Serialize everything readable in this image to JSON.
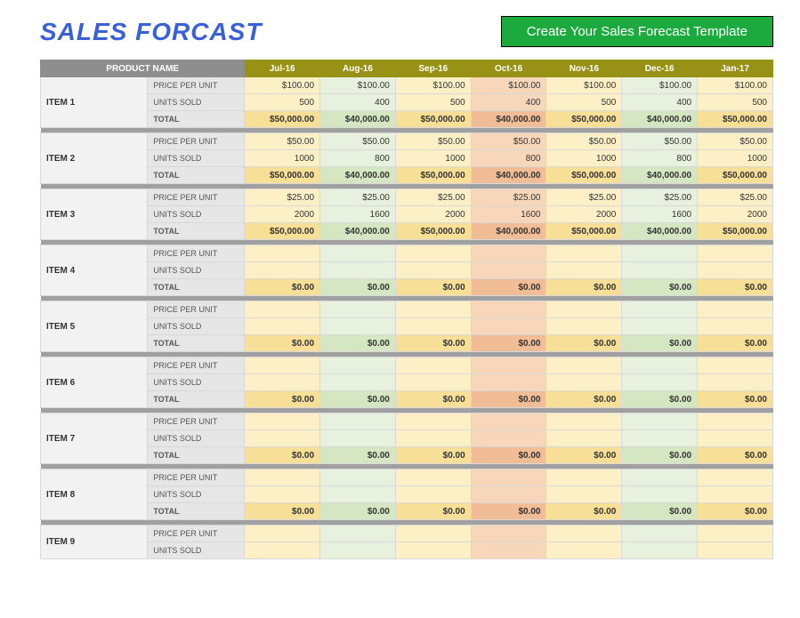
{
  "title": "SALES FORCAST",
  "banner": "Create Your Sales Forecast Template",
  "header": {
    "product_name": "PRODUCT NAME"
  },
  "months": [
    "Jul-16",
    "Aug-16",
    "Sep-16",
    "Oct-16",
    "Nov-16",
    "Dec-16",
    "Jan-17"
  ],
  "row_labels": {
    "ppu": "PRICE PER UNIT",
    "units": "UNITS SOLD",
    "total": "TOTAL"
  },
  "colors": {
    "title": "#3960d6",
    "banner_bg": "#1caa3e",
    "header_bg": "#8e8e8e",
    "month_header_bg": "#979116",
    "separator": "#a0a0a0",
    "item_col_bg": "#f2f2f2",
    "attr_col_bg": "#e6e6e6",
    "month_shades": {
      "Jul-16": {
        "light": "#fdf0c6",
        "dark": "#f7df97"
      },
      "Aug-16": {
        "light": "#e8f1de",
        "dark": "#d5e6c3"
      },
      "Sep-16": {
        "light": "#fdf0c6",
        "dark": "#f7df97"
      },
      "Oct-16": {
        "light": "#f7d6ba",
        "dark": "#f0bd96"
      },
      "Nov-16": {
        "light": "#fdf0c6",
        "dark": "#f7df97"
      },
      "Dec-16": {
        "light": "#e8f1de",
        "dark": "#d5e6c3"
      },
      "Jan-17": {
        "light": "#fdf0c6",
        "dark": "#f7df97"
      }
    }
  },
  "items": [
    {
      "name": "ITEM 1",
      "ppu": [
        "$100.00",
        "$100.00",
        "$100.00",
        "$100.00",
        "$100.00",
        "$100.00",
        "$100.00"
      ],
      "units": [
        "500",
        "400",
        "500",
        "400",
        "500",
        "400",
        "500"
      ],
      "total": [
        "$50,000.00",
        "$40,000.00",
        "$50,000.00",
        "$40,000.00",
        "$50,000.00",
        "$40,000.00",
        "$50,000.00"
      ]
    },
    {
      "name": "ITEM 2",
      "ppu": [
        "$50.00",
        "$50.00",
        "$50.00",
        "$50.00",
        "$50.00",
        "$50.00",
        "$50.00"
      ],
      "units": [
        "1000",
        "800",
        "1000",
        "800",
        "1000",
        "800",
        "1000"
      ],
      "total": [
        "$50,000.00",
        "$40,000.00",
        "$50,000.00",
        "$40,000.00",
        "$50,000.00",
        "$40,000.00",
        "$50,000.00"
      ]
    },
    {
      "name": "ITEM 3",
      "ppu": [
        "$25.00",
        "$25.00",
        "$25.00",
        "$25.00",
        "$25.00",
        "$25.00",
        "$25.00"
      ],
      "units": [
        "2000",
        "1600",
        "2000",
        "1600",
        "2000",
        "1600",
        "2000"
      ],
      "total": [
        "$50,000.00",
        "$40,000.00",
        "$50,000.00",
        "$40,000.00",
        "$50,000.00",
        "$40,000.00",
        "$50,000.00"
      ]
    },
    {
      "name": "ITEM 4",
      "ppu": [
        "",
        "",
        "",
        "",
        "",
        "",
        ""
      ],
      "units": [
        "",
        "",
        "",
        "",
        "",
        "",
        ""
      ],
      "total": [
        "$0.00",
        "$0.00",
        "$0.00",
        "$0.00",
        "$0.00",
        "$0.00",
        "$0.00"
      ]
    },
    {
      "name": "ITEM 5",
      "ppu": [
        "",
        "",
        "",
        "",
        "",
        "",
        ""
      ],
      "units": [
        "",
        "",
        "",
        "",
        "",
        "",
        ""
      ],
      "total": [
        "$0.00",
        "$0.00",
        "$0.00",
        "$0.00",
        "$0.00",
        "$0.00",
        "$0.00"
      ]
    },
    {
      "name": "ITEM 6",
      "ppu": [
        "",
        "",
        "",
        "",
        "",
        "",
        ""
      ],
      "units": [
        "",
        "",
        "",
        "",
        "",
        "",
        ""
      ],
      "total": [
        "$0.00",
        "$0.00",
        "$0.00",
        "$0.00",
        "$0.00",
        "$0.00",
        "$0.00"
      ]
    },
    {
      "name": "ITEM 7",
      "ppu": [
        "",
        "",
        "",
        "",
        "",
        "",
        ""
      ],
      "units": [
        "",
        "",
        "",
        "",
        "",
        "",
        ""
      ],
      "total": [
        "$0.00",
        "$0.00",
        "$0.00",
        "$0.00",
        "$0.00",
        "$0.00",
        "$0.00"
      ]
    },
    {
      "name": "ITEM 8",
      "ppu": [
        "",
        "",
        "",
        "",
        "",
        "",
        ""
      ],
      "units": [
        "",
        "",
        "",
        "",
        "",
        "",
        ""
      ],
      "total": [
        "$0.00",
        "$0.00",
        "$0.00",
        "$0.00",
        "$0.00",
        "$0.00",
        "$0.00"
      ]
    },
    {
      "name": "ITEM 9",
      "ppu": [
        "",
        "",
        "",
        "",
        "",
        "",
        ""
      ],
      "units": [
        "",
        "",
        "",
        "",
        "",
        "",
        ""
      ],
      "total": null
    }
  ]
}
